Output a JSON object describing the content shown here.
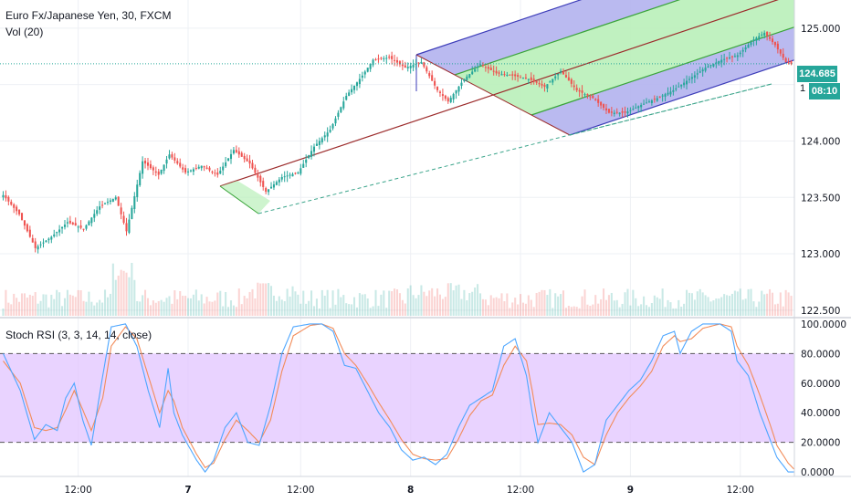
{
  "header": {
    "title": "Euro Fx/Japanese Yen, 30, FXCM",
    "volume": "Vol (20)",
    "oscillator": "Stoch RSI (3, 3, 14, 14, close)"
  },
  "price_tags": {
    "last": "124.685",
    "countdown": "08:10",
    "partial": "1"
  },
  "colors": {
    "up": "#26a69a",
    "down": "#ef5350",
    "k_line": "#4da6ff",
    "d_line": "#f28c5a",
    "rsi_band": "#e1c4ff",
    "pitchfork_fill_outer": "#b3b3ee",
    "pitchfork_fill_inner": "#b9f0b9",
    "pitchfork_median": "#9c2b2b",
    "last_price": "#26a69a"
  },
  "chart_data": [
    {
      "type": "candlestick",
      "symbol": "Euro Fx/Japanese Yen, 30, FXCM",
      "x_ticks": [
        "12:00",
        "7",
        "12:00",
        "8",
        "12:00",
        "9",
        "12:00"
      ],
      "y_ticks": [
        "125.000",
        "124.000",
        "123.500",
        "123.000",
        "122.500"
      ],
      "ylim": [
        122.45,
        125.25
      ],
      "last_price": 124.685,
      "close_path": [
        [
          0,
          123.52
        ],
        [
          6,
          123.35
        ],
        [
          12,
          123.05
        ],
        [
          18,
          123.15
        ],
        [
          24,
          123.28
        ],
        [
          30,
          123.22
        ],
        [
          36,
          123.42
        ],
        [
          42,
          123.5
        ],
        [
          46,
          123.2
        ],
        [
          52,
          123.82
        ],
        [
          58,
          123.7
        ],
        [
          62,
          123.88
        ],
        [
          68,
          123.72
        ],
        [
          74,
          123.78
        ],
        [
          80,
          123.7
        ],
        [
          86,
          123.92
        ],
        [
          92,
          123.8
        ],
        [
          98,
          123.55
        ],
        [
          104,
          123.68
        ],
        [
          110,
          123.72
        ],
        [
          116,
          123.95
        ],
        [
          122,
          124.1
        ],
        [
          128,
          124.4
        ],
        [
          134,
          124.58
        ],
        [
          138,
          124.72
        ],
        [
          144,
          124.74
        ],
        [
          150,
          124.65
        ],
        [
          156,
          124.7
        ],
        [
          162,
          124.45
        ],
        [
          166,
          124.35
        ],
        [
          172,
          124.55
        ],
        [
          178,
          124.68
        ],
        [
          184,
          124.6
        ],
        [
          190,
          124.58
        ],
        [
          196,
          124.55
        ],
        [
          202,
          124.48
        ],
        [
          208,
          124.62
        ],
        [
          214,
          124.45
        ],
        [
          220,
          124.38
        ],
        [
          226,
          124.25
        ],
        [
          232,
          124.25
        ],
        [
          238,
          124.32
        ],
        [
          244,
          124.38
        ],
        [
          250,
          124.45
        ],
        [
          256,
          124.55
        ],
        [
          262,
          124.65
        ],
        [
          268,
          124.72
        ],
        [
          274,
          124.76
        ],
        [
          280,
          124.9
        ],
        [
          284,
          124.96
        ],
        [
          288,
          124.85
        ],
        [
          292,
          124.7
        ],
        [
          294,
          124.685
        ]
      ],
      "volume_ylim": [
        0,
        100
      ]
    },
    {
      "type": "line",
      "title": "Stoch RSI (3, 3, 14, 14, close)",
      "y_ticks": [
        "100.0000",
        "80.0000",
        "60.0000",
        "40.0000",
        "20.0000",
        "0.0000"
      ],
      "ylim": [
        -3,
        103
      ],
      "bands": [
        20,
        80
      ],
      "series": [
        {
          "values_path": [
            [
              0,
              80
            ],
            [
              6,
              55
            ],
            [
              11,
              22
            ],
            [
              15,
              32
            ],
            [
              19,
              28
            ],
            [
              22,
              50
            ],
            [
              25,
              60
            ],
            [
              28,
              35
            ],
            [
              31,
              18
            ],
            [
              35,
              65
            ],
            [
              38,
              98
            ],
            [
              43,
              100
            ],
            [
              47,
              85
            ],
            [
              51,
              55
            ],
            [
              55,
              30
            ],
            [
              58,
              70
            ],
            [
              60,
              40
            ],
            [
              63,
              25
            ],
            [
              68,
              8
            ],
            [
              71,
              0
            ],
            [
              74,
              8
            ],
            [
              78,
              30
            ],
            [
              82,
              40
            ],
            [
              86,
              20
            ],
            [
              90,
              18
            ],
            [
              94,
              45
            ],
            [
              98,
              80
            ],
            [
              102,
              98
            ],
            [
              108,
              100
            ],
            [
              112,
              100
            ],
            [
              116,
              95
            ],
            [
              120,
              72
            ],
            [
              124,
              70
            ],
            [
              128,
              55
            ],
            [
              132,
              40
            ],
            [
              136,
              30
            ],
            [
              140,
              15
            ],
            [
              144,
              8
            ],
            [
              148,
              10
            ],
            [
              152,
              5
            ],
            [
              156,
              12
            ],
            [
              160,
              30
            ],
            [
              164,
              45
            ],
            [
              168,
              50
            ],
            [
              172,
              55
            ],
            [
              176,
              85
            ],
            [
              180,
              90
            ],
            [
              184,
              65
            ],
            [
              186,
              40
            ],
            [
              188,
              20
            ],
            [
              192,
              40
            ],
            [
              196,
              30
            ],
            [
              200,
              20
            ],
            [
              204,
              0
            ],
            [
              208,
              5
            ],
            [
              212,
              35
            ],
            [
              216,
              45
            ],
            [
              220,
              55
            ],
            [
              224,
              62
            ],
            [
              228,
              75
            ],
            [
              232,
              92
            ],
            [
              236,
              95
            ],
            [
              238,
              80
            ],
            [
              242,
              95
            ],
            [
              246,
              100
            ],
            [
              252,
              100
            ],
            [
              256,
              95
            ],
            [
              258,
              75
            ],
            [
              262,
              65
            ],
            [
              266,
              40
            ],
            [
              270,
              20
            ],
            [
              272,
              10
            ],
            [
              276,
              0
            ],
            [
              278,
              0
            ]
          ]
        },
        {
          "values_path": [
            [
              0,
              75
            ],
            [
              6,
              60
            ],
            [
              11,
              30
            ],
            [
              15,
              28
            ],
            [
              19,
              30
            ],
            [
              22,
              42
            ],
            [
              25,
              55
            ],
            [
              28,
              42
            ],
            [
              31,
              28
            ],
            [
              35,
              50
            ],
            [
              38,
              85
            ],
            [
              43,
              98
            ],
            [
              47,
              90
            ],
            [
              51,
              65
            ],
            [
              55,
              40
            ],
            [
              58,
              55
            ],
            [
              60,
              48
            ],
            [
              63,
              30
            ],
            [
              68,
              12
            ],
            [
              71,
              3
            ],
            [
              74,
              6
            ],
            [
              78,
              22
            ],
            [
              82,
              35
            ],
            [
              86,
              28
            ],
            [
              90,
              20
            ],
            [
              94,
              35
            ],
            [
              98,
              68
            ],
            [
              102,
              92
            ],
            [
              108,
              99
            ],
            [
              112,
              100
            ],
            [
              116,
              97
            ],
            [
              120,
              80
            ],
            [
              124,
              72
            ],
            [
              128,
              60
            ],
            [
              132,
              47
            ],
            [
              136,
              35
            ],
            [
              140,
              22
            ],
            [
              144,
              12
            ],
            [
              148,
              9
            ],
            [
              152,
              8
            ],
            [
              156,
              9
            ],
            [
              160,
              22
            ],
            [
              164,
              38
            ],
            [
              168,
              48
            ],
            [
              172,
              52
            ],
            [
              176,
              72
            ],
            [
              180,
              85
            ],
            [
              184,
              75
            ],
            [
              186,
              55
            ],
            [
              188,
              32
            ],
            [
              192,
              33
            ],
            [
              196,
              32
            ],
            [
              200,
              25
            ],
            [
              204,
              10
            ],
            [
              208,
              5
            ],
            [
              212,
              25
            ],
            [
              216,
              40
            ],
            [
              220,
              50
            ],
            [
              224,
              58
            ],
            [
              228,
              68
            ],
            [
              232,
              85
            ],
            [
              236,
              92
            ],
            [
              238,
              88
            ],
            [
              242,
              90
            ],
            [
              246,
              97
            ],
            [
              252,
              100
            ],
            [
              256,
              98
            ],
            [
              258,
              85
            ],
            [
              262,
              72
            ],
            [
              266,
              52
            ],
            [
              270,
              30
            ],
            [
              272,
              18
            ],
            [
              276,
              6
            ],
            [
              278,
              2
            ]
          ]
        }
      ]
    }
  ]
}
